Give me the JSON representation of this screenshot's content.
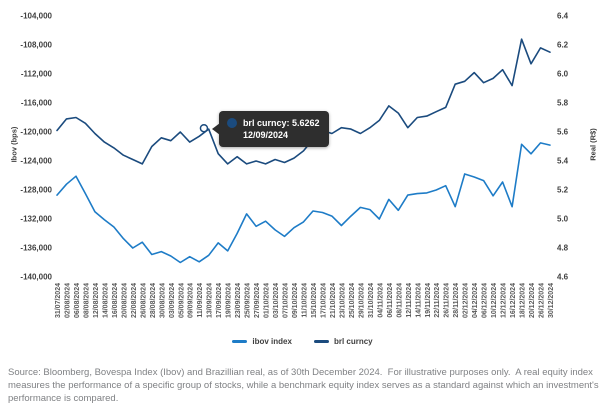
{
  "chart_data": {
    "type": "line",
    "grid": false,
    "categories": [
      "31/07/2024",
      "02/08/2024",
      "06/08/2024",
      "08/08/2024",
      "12/08/2024",
      "14/08/2024",
      "16/08/2024",
      "20/08/2024",
      "22/08/2024",
      "26/08/2024",
      "28/08/2024",
      "30/08/2024",
      "03/09/2024",
      "05/09/2024",
      "09/09/2024",
      "11/09/2024",
      "13/09/2024",
      "17/09/2024",
      "19/09/2024",
      "23/09/2024",
      "25/09/2024",
      "27/09/2024",
      "01/10/2024",
      "03/10/2024",
      "07/10/2024",
      "09/10/2024",
      "11/10/2024",
      "15/10/2024",
      "17/10/2024",
      "21/10/2024",
      "23/10/2024",
      "25/10/2024",
      "29/10/2024",
      "31/10/2024",
      "04/11/2024",
      "06/11/2024",
      "08/11/2024",
      "12/11/2024",
      "14/11/2024",
      "19/11/2024",
      "22/11/2024",
      "26/11/2024",
      "28/11/2024",
      "02/12/2024",
      "04/12/2024",
      "06/12/2024",
      "10/12/2024",
      "12/12/2024",
      "16/12/2024",
      "18/12/2024",
      "20/12/2024",
      "26/12/2024",
      "30/12/2024"
    ],
    "series": [
      {
        "name": "ibov index",
        "axis": "left",
        "color": "#1E7CC7",
        "values": [
          -128700,
          -127200,
          -126100,
          -128500,
          -131000,
          -132100,
          -133100,
          -134700,
          -136000,
          -135200,
          -136900,
          -136500,
          -137100,
          -138000,
          -137200,
          -137900,
          -137000,
          -135300,
          -136400,
          -134000,
          -131300,
          -133000,
          -132300,
          -133500,
          -134400,
          -133200,
          -132400,
          -130900,
          -131100,
          -131600,
          -132900,
          -131600,
          -130400,
          -130700,
          -132000,
          -129300,
          -130800,
          -128700,
          -128500,
          -128400,
          -128000,
          -127400,
          -130300,
          -125800,
          -126200,
          -126700,
          -128800,
          -126900,
          -130300,
          -121700,
          -123000,
          -121500,
          -121800
        ]
      },
      {
        "name": "brl curncy",
        "axis": "right",
        "color": "#1B4B7E",
        "values": [
          5.61,
          5.69,
          5.7,
          5.66,
          5.59,
          5.53,
          5.49,
          5.44,
          5.41,
          5.38,
          5.5,
          5.56,
          5.54,
          5.6,
          5.53,
          5.57,
          5.62,
          5.45,
          5.38,
          5.43,
          5.38,
          5.4,
          5.38,
          5.41,
          5.39,
          5.42,
          5.47,
          5.55,
          5.61,
          5.59,
          5.63,
          5.62,
          5.59,
          5.63,
          5.68,
          5.78,
          5.73,
          5.63,
          5.7,
          5.71,
          5.74,
          5.77,
          5.93,
          5.95,
          6.01,
          5.94,
          5.97,
          6.03,
          5.92,
          6.24,
          6.07,
          6.18,
          6.15
        ]
      }
    ],
    "left_axis": {
      "title": "Ibov (bps)",
      "min": -140000,
      "max": -104000,
      "tick_labels": [
        "-104,000",
        "-108,000",
        "-112,000",
        "-116,000",
        "-120,000",
        "-124,000",
        "-128,000",
        "-132,000",
        "-136,000",
        "-140,000"
      ]
    },
    "right_axis": {
      "title": "Real (R$)",
      "min": 4.6,
      "max": 6.4,
      "tick_labels": [
        "6.4",
        "6.2",
        "6.0",
        "5.8",
        "5.6",
        "5.4",
        "5.2",
        "5.0",
        "4.8",
        "4.6"
      ]
    },
    "legend": {
      "position": "bottom"
    },
    "tooltip": {
      "series": "brl curncy",
      "text": "brl curncy: 5.6262",
      "date": "12/09/2024",
      "value": 5.6262,
      "x_index": 15.5
    }
  },
  "footnote": "Source: Bloomberg, Bovespa Index (Ibov) and Brazillian real, as of 30th December 2024.  For illustrative purposes only.  A real equity index measures the performance of a specific group of stocks, while a benchmark equity index serves as a standard against which an investment's performance is compared."
}
